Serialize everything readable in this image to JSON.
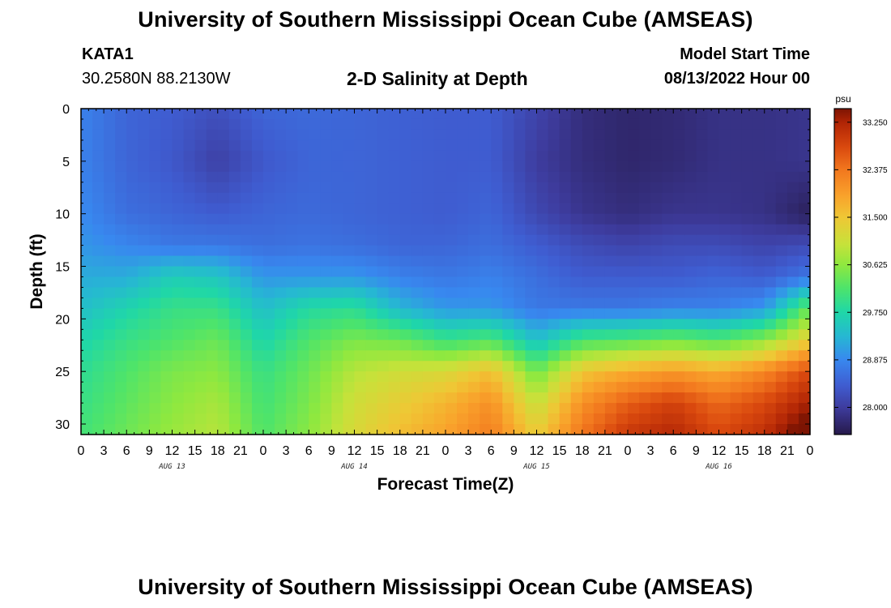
{
  "header": {
    "title": "University of Southern Mississippi Ocean Cube (AMSEAS)",
    "station": "KATA1",
    "coordinates": "30.2580N  88.2130W",
    "subtitle": "2-D Salinity at Depth",
    "model_start_label": "Model Start Time",
    "model_start_value": "08/13/2022 Hour 00"
  },
  "footer": {
    "title": "University of Southern Mississippi Ocean Cube (AMSEAS)"
  },
  "chart_data": {
    "type": "heatmap",
    "title": "2-D Salinity at Depth",
    "xlabel": "Forecast Time(Z)",
    "ylabel": "Depth (ft)",
    "x_ticks": [
      "0",
      "3",
      "6",
      "9",
      "12",
      "15",
      "18",
      "21",
      "0",
      "3",
      "6",
      "9",
      "12",
      "15",
      "18",
      "21",
      "0",
      "3",
      "6",
      "9",
      "12",
      "15",
      "18",
      "21",
      "0",
      "3",
      "6",
      "9",
      "12",
      "15",
      "18",
      "21",
      "0"
    ],
    "x_range_hours": [
      0,
      96
    ],
    "day_labels": [
      {
        "label": "AUG 13",
        "hour": 12
      },
      {
        "label": "AUG 14",
        "hour": 36
      },
      {
        "label": "AUG 15",
        "hour": 60
      },
      {
        "label": "AUG 16",
        "hour": 84
      }
    ],
    "y_ticks": [
      0,
      5,
      10,
      15,
      20,
      25,
      30
    ],
    "y_range_ft": [
      0,
      31
    ],
    "colorbar": {
      "unit": "psu",
      "min": 27.5,
      "max": 33.5,
      "tick_values": [
        28.0,
        28.875,
        29.75,
        30.625,
        31.5,
        32.375,
        33.25
      ],
      "tick_labels": [
        "28.000",
        "28.875",
        "29.750",
        "30.625",
        "31.500",
        "32.375",
        "33.250"
      ]
    },
    "color_stops": [
      {
        "v": 27.5,
        "c": "#26194a"
      },
      {
        "v": 28.0,
        "c": "#3e3c9e"
      },
      {
        "v": 28.4,
        "c": "#3f5cd0"
      },
      {
        "v": 28.875,
        "c": "#3888ef"
      },
      {
        "v": 29.3,
        "c": "#26b7d3"
      },
      {
        "v": 29.75,
        "c": "#1fd7a8"
      },
      {
        "v": 30.2,
        "c": "#4ee46a"
      },
      {
        "v": 30.625,
        "c": "#8fe83f"
      },
      {
        "v": 31.0,
        "c": "#c6e23a"
      },
      {
        "v": 31.5,
        "c": "#efc735"
      },
      {
        "v": 31.9,
        "c": "#f9a22b"
      },
      {
        "v": 32.375,
        "c": "#f2771e"
      },
      {
        "v": 32.8,
        "c": "#d9480e"
      },
      {
        "v": 33.25,
        "c": "#b02405"
      },
      {
        "v": 33.5,
        "c": "#7c1403"
      }
    ],
    "field_times_h": [
      0,
      6,
      12,
      18,
      24,
      30,
      36,
      42,
      48,
      54,
      60,
      66,
      72,
      78,
      84,
      90,
      96
    ],
    "field_depths_ft": [
      0,
      5,
      10,
      13,
      16,
      19,
      22,
      25,
      28,
      31
    ],
    "field_psu": [
      [
        28.8,
        28.5,
        28.4,
        28.25,
        28.5,
        28.55,
        28.5,
        28.45,
        28.4,
        28.4,
        28.1,
        27.8,
        27.7,
        27.75,
        27.85,
        27.85,
        27.9
      ],
      [
        28.8,
        28.5,
        28.35,
        28.05,
        28.35,
        28.5,
        28.5,
        28.45,
        28.4,
        28.4,
        28.0,
        27.8,
        27.7,
        27.75,
        27.85,
        27.85,
        27.9
      ],
      [
        28.9,
        28.6,
        28.5,
        28.4,
        28.5,
        28.55,
        28.5,
        28.45,
        28.4,
        28.5,
        28.15,
        27.9,
        27.8,
        27.9,
        27.9,
        27.85,
        27.6
      ],
      [
        29.0,
        28.85,
        28.7,
        28.7,
        28.6,
        28.65,
        28.6,
        28.5,
        28.5,
        28.6,
        28.4,
        28.2,
        28.1,
        28.2,
        28.2,
        28.1,
        28.2
      ],
      [
        29.2,
        29.2,
        29.6,
        29.5,
        29.0,
        29.0,
        29.0,
        28.8,
        28.7,
        28.8,
        28.6,
        28.4,
        28.4,
        28.4,
        28.5,
        28.4,
        28.7
      ],
      [
        29.4,
        29.7,
        30.0,
        30.0,
        29.4,
        29.8,
        29.9,
        29.3,
        29.0,
        29.0,
        28.7,
        28.7,
        28.7,
        28.8,
        28.8,
        29.0,
        30.4
      ],
      [
        29.7,
        30.0,
        30.2,
        30.4,
        29.7,
        30.2,
        30.5,
        30.4,
        30.0,
        30.2,
        29.4,
        30.1,
        30.2,
        30.4,
        30.2,
        30.6,
        31.4
      ],
      [
        29.9,
        30.2,
        30.5,
        30.6,
        30.0,
        30.4,
        30.9,
        31.1,
        31.2,
        31.6,
        30.4,
        31.5,
        31.8,
        32.0,
        31.8,
        32.2,
        32.8
      ],
      [
        30.0,
        30.3,
        30.6,
        30.8,
        30.1,
        30.5,
        31.1,
        31.4,
        31.7,
        32.1,
        31.0,
        32.1,
        32.6,
        32.9,
        32.5,
        32.8,
        33.3
      ],
      [
        30.1,
        30.4,
        30.7,
        30.9,
        30.2,
        30.6,
        31.2,
        31.6,
        31.9,
        32.3,
        31.4,
        32.4,
        33.0,
        33.2,
        32.8,
        33.1,
        33.8
      ]
    ]
  }
}
